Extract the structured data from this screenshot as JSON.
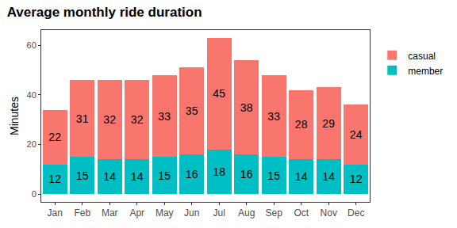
{
  "chart_data": {
    "type": "bar",
    "title": "Average monthly ride duration",
    "y_label": "Minutes",
    "categories": [
      "Jan",
      "Feb",
      "Mar",
      "Apr",
      "May",
      "Jun",
      "Jul",
      "Aug",
      "Sep",
      "Oct",
      "Nov",
      "Dec"
    ],
    "series": [
      {
        "name": "member",
        "color": "#00BFC4",
        "values": [
          12,
          15,
          14,
          14,
          15,
          16,
          18,
          16,
          15,
          14,
          14,
          12
        ]
      },
      {
        "name": "casual",
        "color": "#F8766D",
        "values": [
          22,
          31,
          32,
          32,
          33,
          35,
          45,
          38,
          33,
          28,
          29,
          24
        ]
      }
    ],
    "stacked": true,
    "data_labels": true,
    "legend": "right",
    "grid": false,
    "ylim": [
      -3.15,
      66.15
    ],
    "yticks": [
      0,
      20,
      40,
      60
    ]
  }
}
